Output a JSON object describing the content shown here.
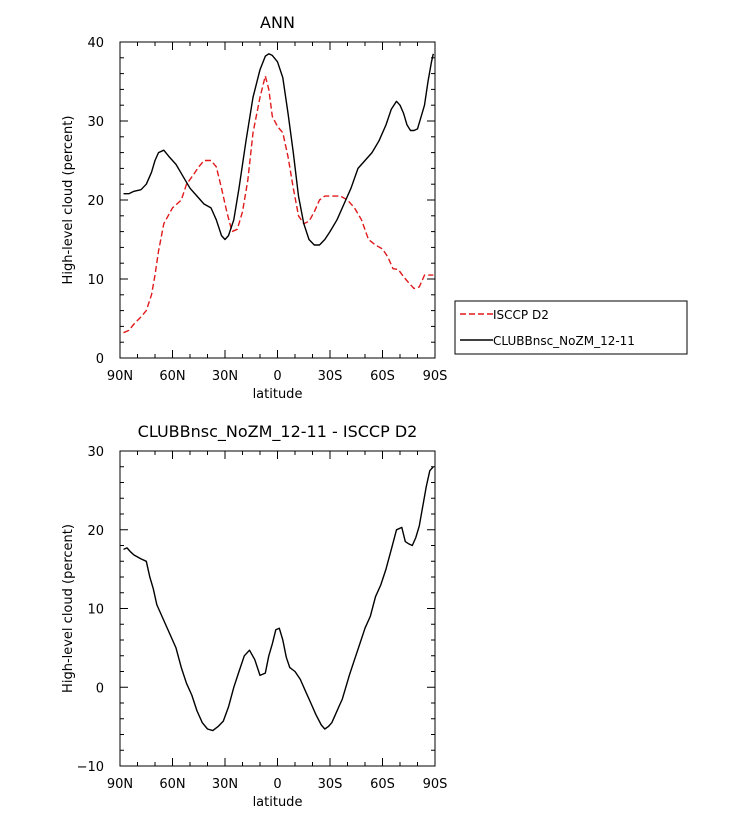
{
  "chart_data": [
    {
      "type": "line",
      "title": "ANN",
      "xlabel": "latitude",
      "ylabel": "High-level cloud (percent)",
      "x_tick_labels": [
        "90N",
        "60N",
        "30N",
        "0",
        "30S",
        "60S",
        "90S"
      ],
      "x_tick_values": [
        -90,
        -60,
        -30,
        0,
        30,
        60,
        90
      ],
      "y_tick_labels": [
        "0",
        "10",
        "20",
        "30",
        "40"
      ],
      "y_tick_values": [
        0,
        10,
        20,
        30,
        40
      ],
      "xlim": [
        -90,
        90
      ],
      "ylim": [
        0,
        40
      ],
      "grid": false,
      "legend_position": "right",
      "series": [
        {
          "name": "ISCCP D2",
          "color": "#e0191c",
          "style": "dashed",
          "x": [
            -88,
            -85,
            -82,
            -78,
            -75,
            -72,
            -70,
            -68,
            -65,
            -60,
            -55,
            -52,
            -48,
            -45,
            -42,
            -38,
            -35,
            -32,
            -29,
            -26,
            -23,
            -20,
            -17,
            -14,
            -10,
            -7,
            -5,
            -3,
            0,
            3,
            6,
            9,
            12,
            15,
            18,
            21,
            24,
            27,
            30,
            33,
            36,
            40,
            44,
            48,
            52,
            56,
            60,
            63,
            66,
            69,
            72,
            75,
            78,
            81,
            84,
            87,
            89
          ],
          "y": [
            3.2,
            3.5,
            4.3,
            5.2,
            6.0,
            8.0,
            10.5,
            13.5,
            17.0,
            19.0,
            20.0,
            22.0,
            23.2,
            24.2,
            25.0,
            25.0,
            24.2,
            21.5,
            18.5,
            16.0,
            16.3,
            18.5,
            22.5,
            28.5,
            33.0,
            35.7,
            34.0,
            30.6,
            29.3,
            28.5,
            25.5,
            21.5,
            18.0,
            17.0,
            17.3,
            18.5,
            20.0,
            20.5,
            20.5,
            20.5,
            20.5,
            20.0,
            19.0,
            17.5,
            15.0,
            14.3,
            13.8,
            12.8,
            11.3,
            11.2,
            10.3,
            9.5,
            8.8,
            9.0,
            10.5,
            10.5,
            10.5
          ]
        },
        {
          "name": "CLUBBnsc_NoZM_12-11",
          "color": "#000000",
          "style": "solid",
          "x": [
            -88,
            -85,
            -82,
            -78,
            -75,
            -72,
            -70,
            -68,
            -65,
            -62,
            -58,
            -54,
            -50,
            -46,
            -42,
            -38,
            -35,
            -32,
            -30,
            -28,
            -25,
            -22,
            -18,
            -14,
            -10,
            -7,
            -5,
            -3,
            0,
            3,
            6,
            9,
            12,
            15,
            18,
            21,
            24,
            27,
            30,
            34,
            38,
            42,
            46,
            50,
            54,
            58,
            62,
            65,
            68,
            70,
            72,
            74,
            76,
            78,
            80,
            82,
            84,
            86,
            88,
            89
          ],
          "y": [
            20.8,
            20.8,
            21.1,
            21.3,
            22.0,
            23.5,
            25.0,
            26.0,
            26.3,
            25.5,
            24.5,
            23.0,
            21.5,
            20.5,
            19.5,
            19.0,
            17.5,
            15.5,
            15.0,
            15.5,
            17.5,
            21.5,
            27.5,
            33.0,
            36.5,
            38.2,
            38.5,
            38.3,
            37.5,
            35.5,
            31.0,
            26.0,
            20.5,
            17.0,
            15.0,
            14.3,
            14.3,
            15.0,
            16.0,
            17.5,
            19.5,
            21.5,
            24.0,
            25.0,
            26.0,
            27.5,
            29.5,
            31.5,
            32.5,
            32.0,
            31.0,
            29.5,
            28.8,
            28.8,
            29.0,
            30.5,
            32.0,
            35.0,
            37.5,
            38.5
          ]
        }
      ]
    },
    {
      "type": "line",
      "title": "CLUBBnsc_NoZM_12-11 - ISCCP D2",
      "xlabel": "latitude",
      "ylabel": "High-level cloud (percent)",
      "x_tick_labels": [
        "90N",
        "60N",
        "30N",
        "0",
        "30S",
        "60S",
        "90S"
      ],
      "x_tick_values": [
        -90,
        -60,
        -30,
        0,
        30,
        60,
        90
      ],
      "y_tick_labels": [
        "−10",
        "0",
        "10",
        "20",
        "30"
      ],
      "y_tick_values": [
        -10,
        0,
        10,
        20,
        30
      ],
      "xlim": [
        -90,
        90
      ],
      "ylim": [
        -10,
        30
      ],
      "grid": false,
      "series": [
        {
          "color": "#000000",
          "style": "solid",
          "x": [
            -88,
            -86,
            -84,
            -82,
            -78,
            -75,
            -73,
            -71,
            -69,
            -66,
            -62,
            -58,
            -55,
            -52,
            -49,
            -46,
            -43,
            -40,
            -37,
            -34,
            -31,
            -28,
            -25,
            -22,
            -19,
            -16,
            -13,
            -10,
            -7,
            -5,
            -3,
            -1,
            1,
            3,
            5,
            7,
            10,
            13,
            16,
            19,
            22,
            25,
            27,
            29,
            31,
            33,
            35,
            37,
            39,
            41,
            44,
            47,
            50,
            53,
            56,
            59,
            62,
            65,
            68,
            71,
            73,
            75,
            77,
            79,
            81,
            83,
            85,
            87,
            89
          ],
          "y": [
            17.5,
            17.7,
            17.2,
            16.8,
            16.3,
            16.0,
            14.0,
            12.5,
            10.5,
            9.0,
            7.0,
            5.0,
            2.5,
            0.5,
            -1.0,
            -3.0,
            -4.5,
            -5.3,
            -5.5,
            -5.0,
            -4.3,
            -2.5,
            0.0,
            2.0,
            4.0,
            4.7,
            3.5,
            1.5,
            1.8,
            4.0,
            5.5,
            7.3,
            7.5,
            6.0,
            3.8,
            2.5,
            2.0,
            1.0,
            -0.5,
            -2.0,
            -3.5,
            -4.8,
            -5.3,
            -5.0,
            -4.5,
            -3.5,
            -2.5,
            -1.5,
            0.0,
            1.5,
            3.5,
            5.5,
            7.5,
            9.0,
            11.5,
            13.0,
            15.0,
            17.5,
            20.0,
            20.3,
            18.5,
            18.2,
            18.0,
            19.0,
            20.5,
            23.0,
            25.5,
            27.5,
            28.0
          ]
        }
      ]
    }
  ]
}
